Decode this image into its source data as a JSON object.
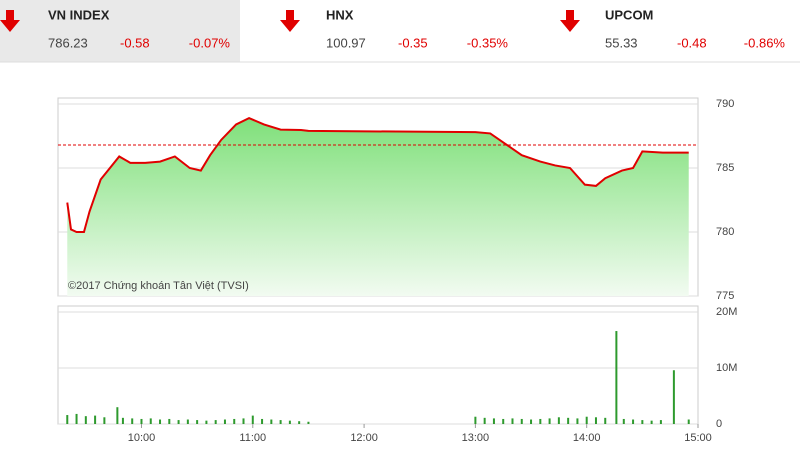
{
  "header": {
    "indices": [
      {
        "name": "VN INDEX",
        "value": "786.23",
        "change": "-0.58",
        "percent": "-0.07%"
      },
      {
        "name": "HNX",
        "value": "100.97",
        "change": "-0.35",
        "percent": "-0.35%"
      },
      {
        "name": "UPCOM",
        "value": "55.33",
        "change": "-0.48",
        "percent": "-0.86%"
      }
    ]
  },
  "chart_data": [
    {
      "type": "area",
      "annotation": "©2017 Chứng khoán Tân Việt (TVSI)",
      "x": [
        "09:20",
        "09:22",
        "09:25",
        "09:29",
        "09:32",
        "09:38",
        "09:43",
        "09:48",
        "09:54",
        "10:02",
        "10:10",
        "10:18",
        "10:26",
        "10:32",
        "10:37",
        "10:43",
        "10:51",
        "10:58",
        "11:06",
        "11:15",
        "11:26",
        "11:30",
        "13:00",
        "13:08",
        "13:16",
        "13:25",
        "13:35",
        "13:43",
        "13:51",
        "13:59",
        "14:05",
        "14:10",
        "14:19",
        "14:25",
        "14:30",
        "14:41",
        "14:55"
      ],
      "values": [
        782.3,
        780.2,
        780.0,
        780.0,
        781.6,
        784.1,
        785.0,
        785.9,
        785.4,
        785.4,
        785.5,
        785.9,
        785.0,
        784.8,
        786.0,
        787.2,
        788.4,
        788.9,
        788.4,
        788.0,
        787.97,
        787.9,
        787.8,
        787.7,
        786.9,
        786.0,
        785.5,
        785.2,
        785.0,
        783.7,
        783.6,
        784.2,
        784.8,
        785.0,
        786.3,
        786.2,
        786.2
      ],
      "color": "#e00000",
      "reference_line": 786.8,
      "xlim": [
        "09:15",
        "15:00"
      ],
      "ylim": [
        775,
        790
      ],
      "yticks": [
        775,
        780,
        785,
        790
      ],
      "grid": true
    },
    {
      "type": "bar",
      "x": [
        "09:20",
        "09:25",
        "09:30",
        "09:35",
        "09:40",
        "09:47",
        "09:50",
        "09:55",
        "10:00",
        "10:05",
        "10:10",
        "10:15",
        "10:20",
        "10:25",
        "10:30",
        "10:35",
        "10:40",
        "10:45",
        "10:50",
        "10:55",
        "11:00",
        "11:05",
        "11:10",
        "11:15",
        "11:20",
        "11:25",
        "11:30",
        "13:00",
        "13:05",
        "13:10",
        "13:15",
        "13:20",
        "13:25",
        "13:30",
        "13:35",
        "13:40",
        "13:45",
        "13:50",
        "13:55",
        "14:00",
        "14:05",
        "14:10",
        "14:16",
        "14:20",
        "14:25",
        "14:30",
        "14:35",
        "14:40",
        "14:47",
        "14:55"
      ],
      "values": [
        1600000,
        1800000,
        1400000,
        1500000,
        1200000,
        3000000,
        1100000,
        1000000,
        900000,
        1000000,
        800000,
        900000,
        700000,
        800000,
        700000,
        600000,
        700000,
        800000,
        900000,
        1000000,
        1500000,
        900000,
        800000,
        700000,
        600000,
        500000,
        400000,
        1300000,
        1100000,
        1000000,
        900000,
        1000000,
        900000,
        800000,
        900000,
        1000000,
        1200000,
        1100000,
        1000000,
        1300000,
        1200000,
        1100000,
        16600000,
        900000,
        800000,
        700000,
        600000,
        700000,
        9600000,
        800000
      ],
      "color": "#2e9a2e",
      "xlim": [
        "09:15",
        "15:00"
      ],
      "ylim": [
        0,
        20000000
      ],
      "yticks": [
        0,
        {
          "value": 10000000,
          "label": "10M"
        },
        {
          "value": 20000000,
          "label": "20M"
        }
      ],
      "xticks": [
        "10:00",
        "11:00",
        "12:00",
        "13:00",
        "14:00",
        "15:00"
      ],
      "grid": true
    }
  ]
}
